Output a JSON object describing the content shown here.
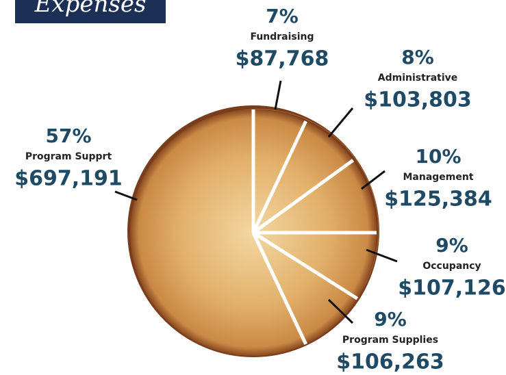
{
  "chart_data": {
    "type": "pie",
    "title": "Expenses",
    "categories": [
      "Fundraising",
      "Administrative",
      "Management",
      "Occupancy",
      "Program Supplies",
      "Program Supprt"
    ],
    "values": [
      7,
      8,
      10,
      9,
      9,
      57
    ],
    "value_labels": [
      "7%",
      "8%",
      "10%",
      "9%",
      "9%",
      "57%"
    ],
    "amount_labels": [
      "$87,768",
      "$103,803",
      "$125,384",
      "$107,126",
      "$106,263",
      "$697,191"
    ]
  }
}
